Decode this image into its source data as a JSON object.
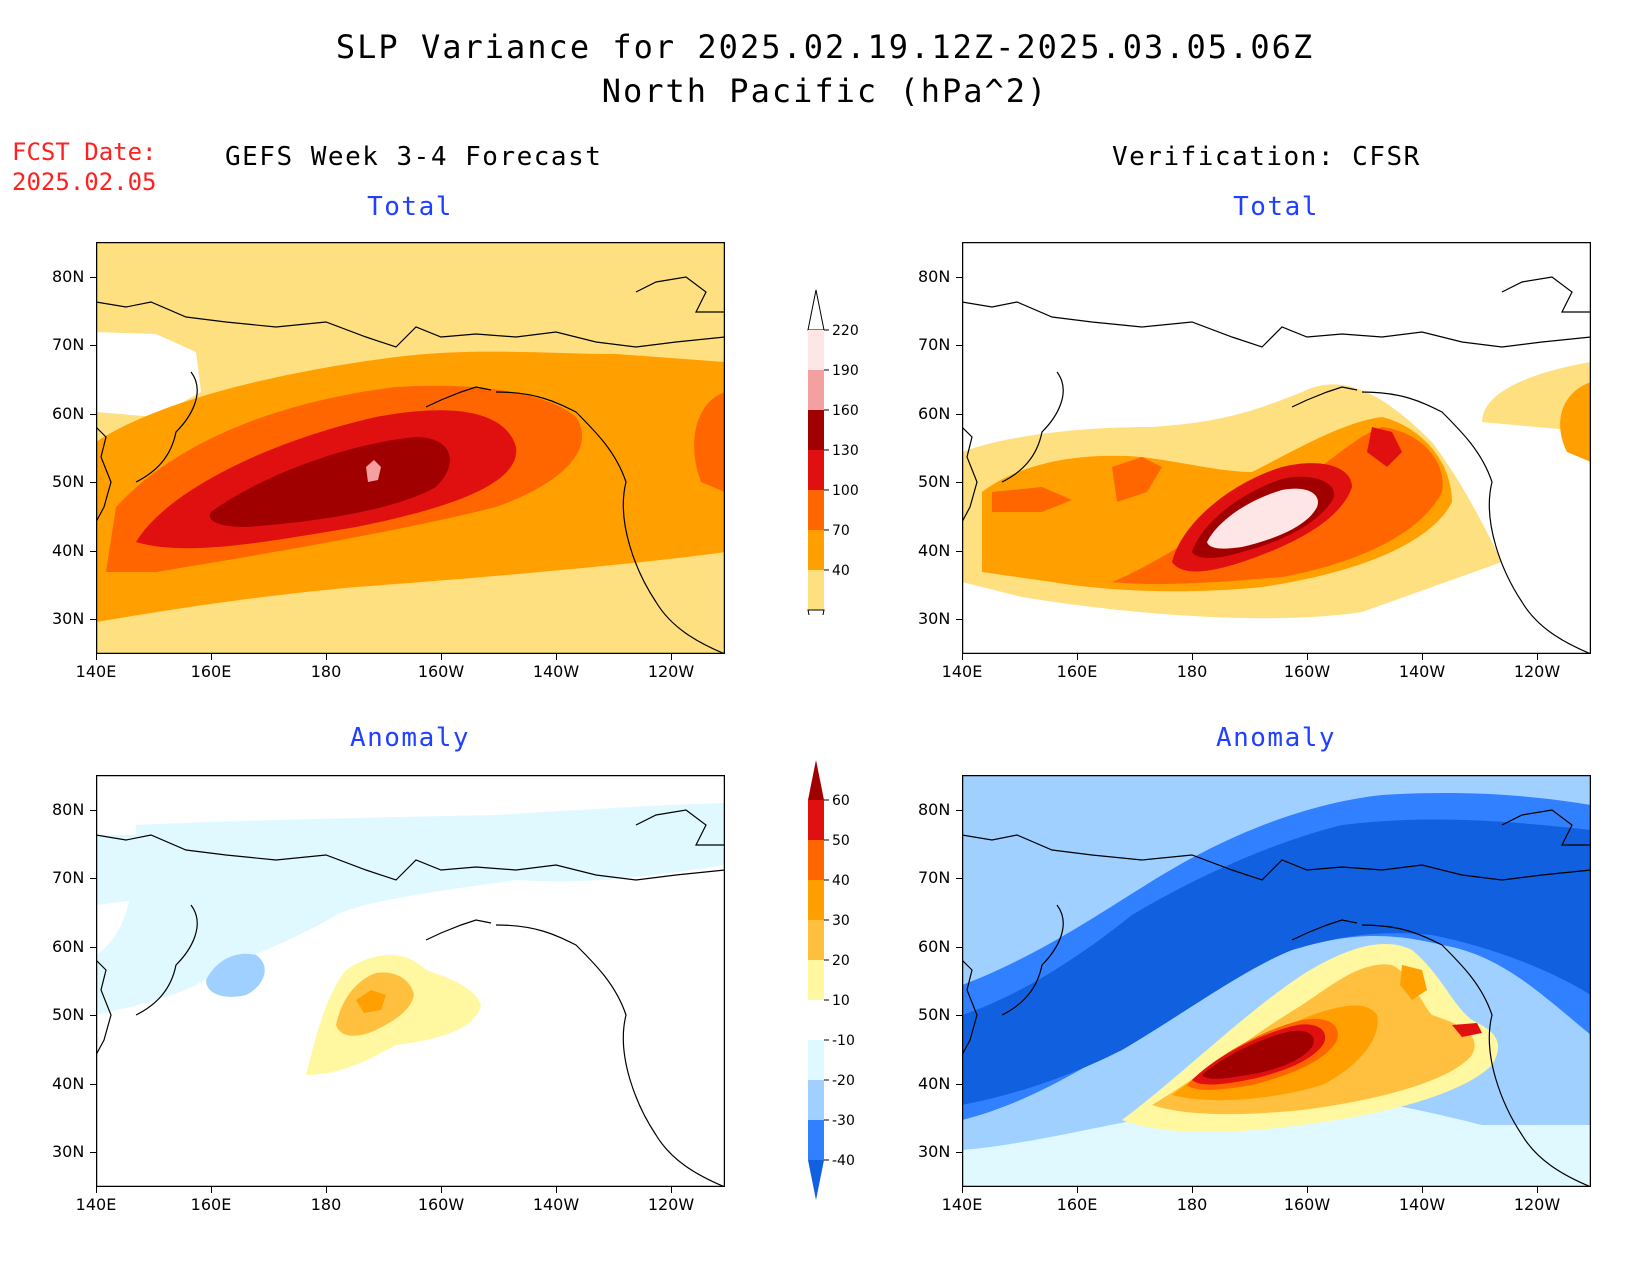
{
  "header": {
    "title_line1": "SLP Variance for 2025.02.19.12Z-2025.03.05.06Z",
    "title_line2": "North Pacific (hPa^2)",
    "fcst_label": "FCST Date:",
    "fcst_date": "2025.02.05"
  },
  "columns": {
    "left": "GEFS Week 3-4 Forecast",
    "right": "Verification: CFSR"
  },
  "panels": {
    "total_label": "Total",
    "anomaly_label": "Anomaly"
  },
  "axes": {
    "lat_labels": [
      "80N",
      "70N",
      "60N",
      "50N",
      "40N",
      "30N"
    ],
    "lon_labels": [
      "140E",
      "160E",
      "180",
      "160W",
      "140W",
      "120W"
    ]
  },
  "colorbars": {
    "total": {
      "levels": [
        "220",
        "190",
        "160",
        "130",
        "100",
        "70",
        "40"
      ],
      "colors": [
        "#ffe6e6",
        "#f4a0a0",
        "#a00000",
        "#e01010",
        "#ff6600",
        "#ffa000",
        "#ffe080"
      ]
    },
    "anomaly": {
      "levels": [
        "60",
        "50",
        "40",
        "30",
        "20",
        "10",
        "-10",
        "-20",
        "-30",
        "-40"
      ],
      "colors": [
        "#a00000",
        "#e01010",
        "#ff6600",
        "#ffa000",
        "#ffc040",
        "#fff8a0",
        "#ffffff",
        "#e0f8ff",
        "#a0d0ff",
        "#3080ff",
        "#1060e0"
      ]
    }
  }
}
